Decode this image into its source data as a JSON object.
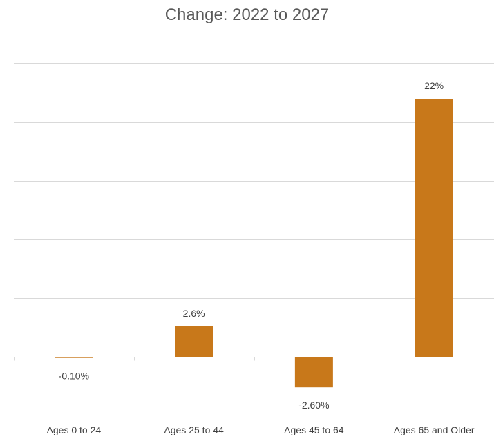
{
  "chart_data": {
    "type": "bar",
    "title": "Change: 2022 to 2027",
    "categories": [
      "Ages 0 to 24",
      "Ages 25 to 44",
      "Ages 45 to 64",
      "Ages 65 and Older"
    ],
    "values": [
      -0.1,
      2.6,
      -2.6,
      22
    ],
    "data_labels": [
      "-0.10%",
      "2.6%",
      "-2.60%",
      "22%"
    ],
    "xlabel": "",
    "ylabel": "",
    "ylim": [
      -5,
      25
    ],
    "grid": true,
    "bar_color": "#c8781a"
  }
}
